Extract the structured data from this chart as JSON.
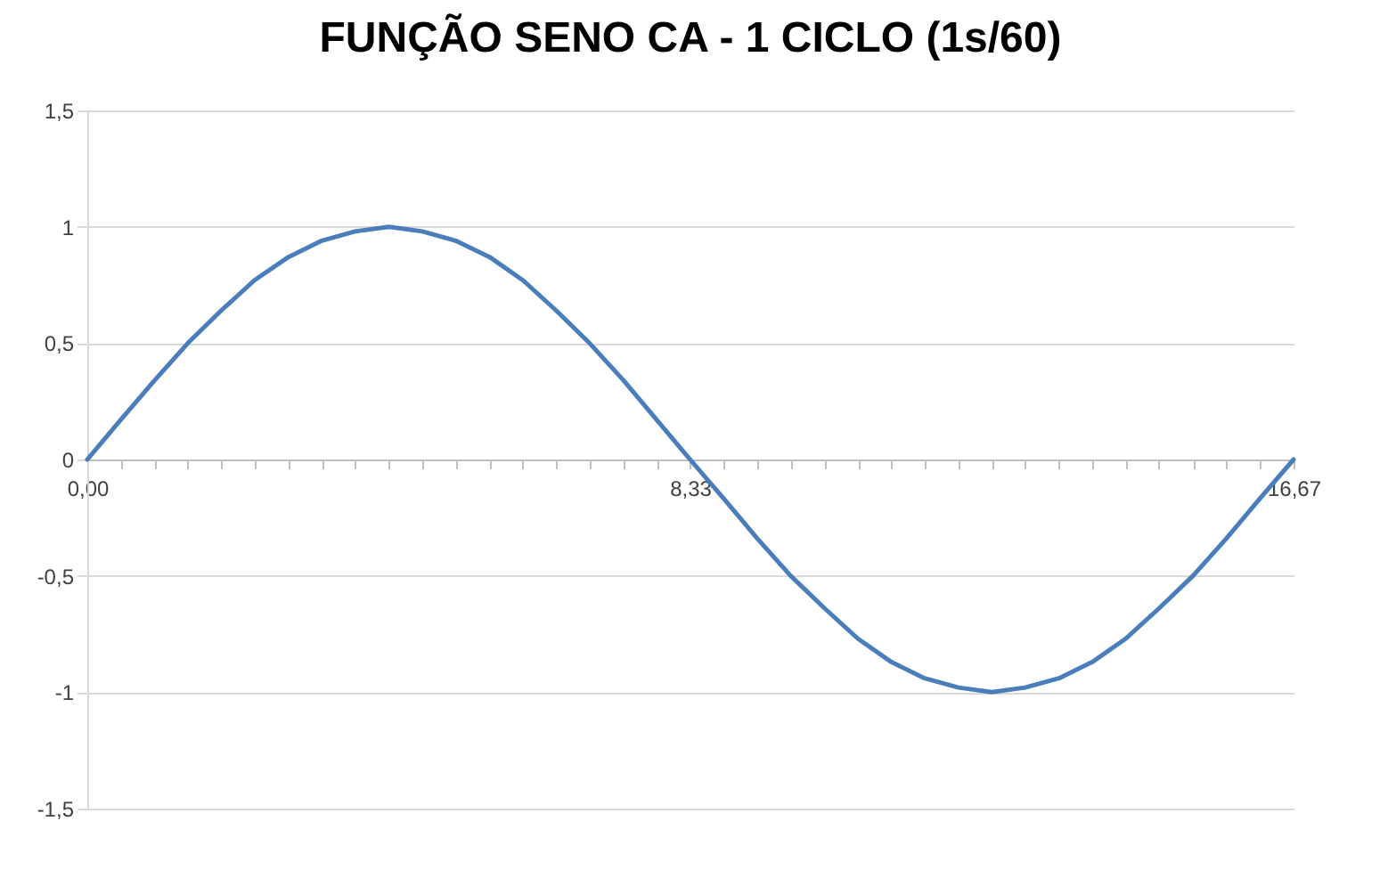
{
  "chart_data": {
    "type": "line",
    "title": "FUNÇÃO SENO CA - 1 CICLO (1s/60)",
    "x": [
      0,
      0.46,
      0.93,
      1.39,
      1.85,
      2.31,
      2.78,
      3.24,
      3.7,
      4.17,
      4.63,
      5.09,
      5.56,
      6.02,
      6.48,
      6.94,
      7.41,
      7.87,
      8.33,
      8.8,
      9.26,
      9.72,
      10.19,
      10.65,
      11.11,
      11.57,
      12.04,
      12.5,
      12.96,
      13.43,
      13.89,
      14.35,
      14.81,
      15.28,
      15.74,
      16.2,
      16.67
    ],
    "series": [
      {
        "color": "#4a7ebb",
        "values": [
          0,
          0.17,
          0.34,
          0.5,
          0.64,
          0.77,
          0.87,
          0.94,
          0.98,
          1,
          0.98,
          0.94,
          0.87,
          0.77,
          0.64,
          0.5,
          0.34,
          0.17,
          0,
          -0.17,
          -0.34,
          -0.5,
          -0.64,
          -0.77,
          -0.87,
          -0.94,
          -0.98,
          -1,
          -0.98,
          -0.94,
          -0.87,
          -0.77,
          -0.64,
          -0.5,
          -0.34,
          -0.17,
          0
        ]
      }
    ],
    "xlim": [
      0,
      16.67
    ],
    "xticks": [
      {
        "value": 0,
        "label": "0,00"
      },
      {
        "value": 0.46,
        "label": null
      },
      {
        "value": 0.93,
        "label": null
      },
      {
        "value": 1.39,
        "label": null
      },
      {
        "value": 1.85,
        "label": null
      },
      {
        "value": 2.31,
        "label": null
      },
      {
        "value": 2.78,
        "label": null
      },
      {
        "value": 3.24,
        "label": null
      },
      {
        "value": 3.7,
        "label": null
      },
      {
        "value": 4.17,
        "label": null
      },
      {
        "value": 4.63,
        "label": null
      },
      {
        "value": 5.09,
        "label": null
      },
      {
        "value": 5.56,
        "label": null
      },
      {
        "value": 6.02,
        "label": null
      },
      {
        "value": 6.48,
        "label": null
      },
      {
        "value": 6.94,
        "label": null
      },
      {
        "value": 7.41,
        "label": null
      },
      {
        "value": 7.87,
        "label": null
      },
      {
        "value": 8.33,
        "label": "8,33"
      },
      {
        "value": 8.8,
        "label": null
      },
      {
        "value": 9.26,
        "label": null
      },
      {
        "value": 9.72,
        "label": null
      },
      {
        "value": 10.19,
        "label": null
      },
      {
        "value": 10.65,
        "label": null
      },
      {
        "value": 11.11,
        "label": null
      },
      {
        "value": 11.57,
        "label": null
      },
      {
        "value": 12.04,
        "label": null
      },
      {
        "value": 12.5,
        "label": null
      },
      {
        "value": 12.96,
        "label": null
      },
      {
        "value": 13.43,
        "label": null
      },
      {
        "value": 13.89,
        "label": null
      },
      {
        "value": 14.35,
        "label": null
      },
      {
        "value": 14.81,
        "label": null
      },
      {
        "value": 15.28,
        "label": null
      },
      {
        "value": 15.74,
        "label": null
      },
      {
        "value": 16.2,
        "label": null
      },
      {
        "value": 16.67,
        "label": "16,67"
      }
    ],
    "ylim": [
      -1.5,
      1.5
    ],
    "yticks": [
      {
        "value": -1.5,
        "label": "-1,5"
      },
      {
        "value": -1,
        "label": "-1"
      },
      {
        "value": -0.5,
        "label": "-0,5"
      },
      {
        "value": 0,
        "label": "0"
      },
      {
        "value": 0.5,
        "label": "0,5"
      },
      {
        "value": 1,
        "label": "1"
      },
      {
        "value": 1.5,
        "label": "1,5"
      }
    ],
    "grid": "y",
    "marker": "none",
    "line_style": "solid"
  }
}
